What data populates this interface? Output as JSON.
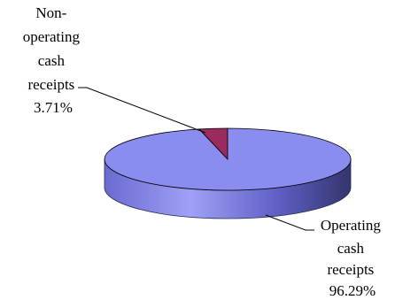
{
  "chart_data": {
    "type": "pie",
    "style": "3d",
    "slices": [
      {
        "label": [
          "Non-",
          "operating",
          "cash",
          "receipts",
          "3.71%"
        ],
        "value": 3.71,
        "color": "#9b2b5e"
      },
      {
        "label": [
          "Operating",
          "cash",
          "receipts",
          "96.29%"
        ],
        "value": 96.29,
        "color": "#8b8cf0"
      }
    ]
  }
}
